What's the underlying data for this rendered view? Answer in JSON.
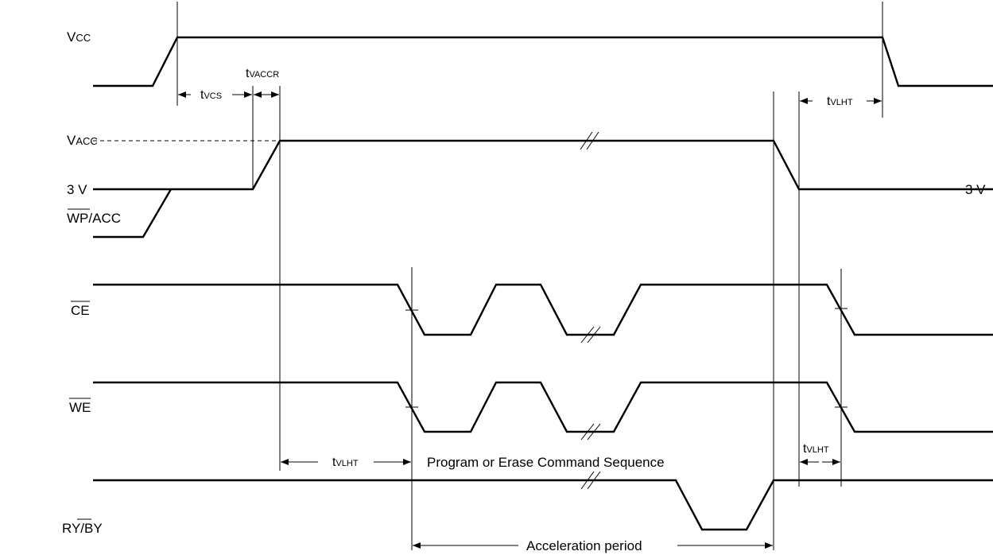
{
  "signals": {
    "vcc": "VCC",
    "vacc": "VACC",
    "v3_left": "3 V",
    "v3_right": "3 V",
    "wp_acc": {
      "overbar": "WP",
      "rest": "/ACC"
    },
    "ce": "CE",
    "we": "WE",
    "ry_by": {
      "plain": "RY/",
      "overbar": "BY"
    }
  },
  "timings": {
    "tvcs": {
      "t": "t",
      "sub": "VCS"
    },
    "tvaccr": {
      "t": "t",
      "sub": "VACCR"
    },
    "tvlht_top": {
      "t": "t",
      "sub": "VLHT"
    },
    "tvlht_mid": {
      "t": "t",
      "sub": "VLHT"
    },
    "tvlht_right": {
      "t": "t",
      "sub": "VLHT"
    }
  },
  "captions": {
    "command_sequence": "Program or Erase Command Sequence",
    "acceleration_period": "Acceleration period"
  }
}
